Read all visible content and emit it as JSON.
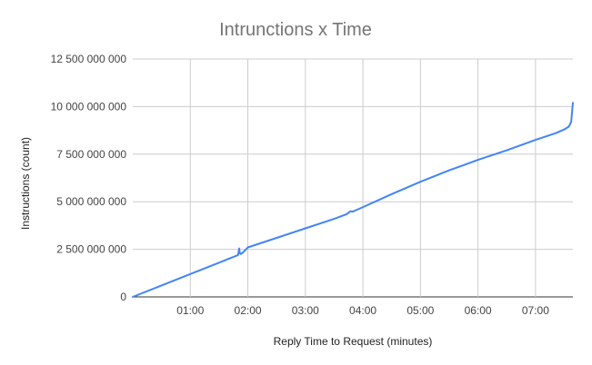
{
  "chart_data": {
    "type": "line",
    "title": "Intrunctions x Time",
    "xlabel": "Reply Time to Request (minutes)",
    "ylabel": "Instructions (count)",
    "xlim": [
      0,
      7.65
    ],
    "ylim": [
      0,
      12500000000
    ],
    "x_ticks": [
      {
        "value": 1,
        "label": "01:00"
      },
      {
        "value": 2,
        "label": "02:00"
      },
      {
        "value": 3,
        "label": "03:00"
      },
      {
        "value": 4,
        "label": "04:00"
      },
      {
        "value": 5,
        "label": "05:00"
      },
      {
        "value": 6,
        "label": "06:00"
      },
      {
        "value": 7,
        "label": "07:00"
      }
    ],
    "y_ticks": [
      {
        "value": 0,
        "label": "0"
      },
      {
        "value": 2500000000,
        "label": "2 500 000 000"
      },
      {
        "value": 5000000000,
        "label": "5 000 000 000"
      },
      {
        "value": 7500000000,
        "label": "7 500 000 000"
      },
      {
        "value": 10000000000,
        "label": "10 000 000 000"
      },
      {
        "value": 12500000000,
        "label": "12 500 000 000"
      }
    ],
    "grid": true,
    "legend": "none",
    "series": [
      {
        "color": "#4285f4",
        "x": [
          0,
          0.5,
          1.0,
          1.5,
          1.83,
          1.85,
          1.86,
          1.88,
          1.92,
          1.97,
          2.0,
          2.5,
          3.0,
          3.5,
          3.72,
          3.78,
          3.82,
          3.9,
          4.0,
          4.5,
          5.0,
          5.5,
          6.0,
          6.5,
          7.0,
          7.35,
          7.5,
          7.58,
          7.62,
          7.65
        ],
        "y": [
          0,
          600000000,
          1200000000,
          1800000000,
          2200000000,
          2550000000,
          2300000000,
          2250000000,
          2350000000,
          2500000000,
          2600000000,
          3100000000,
          3600000000,
          4100000000,
          4350000000,
          4500000000,
          4480000000,
          4580000000,
          4720000000,
          5400000000,
          6050000000,
          6650000000,
          7200000000,
          7700000000,
          8250000000,
          8600000000,
          8800000000,
          8950000000,
          9200000000,
          10200000000
        ]
      }
    ]
  }
}
